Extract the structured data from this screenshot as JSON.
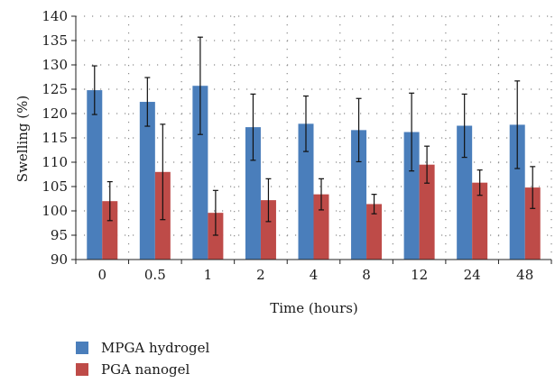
{
  "chart_data": {
    "type": "bar",
    "title": "",
    "xlabel": "Time (hours)",
    "ylabel": "Swelling (%)",
    "ylim": [
      90,
      140
    ],
    "yticks": [
      90,
      95,
      100,
      105,
      110,
      115,
      120,
      125,
      130,
      135,
      140
    ],
    "grid": "dotted",
    "legend_position": "bottom-left",
    "categories": [
      "0",
      "0.5",
      "1",
      "2",
      "4",
      "8",
      "12",
      "24",
      "48"
    ],
    "series": [
      {
        "name": "MPGA hydrogel",
        "color": "#4a7ebb",
        "values": [
          124.8,
          122.4,
          125.7,
          117.2,
          117.9,
          116.6,
          116.2,
          117.5,
          117.7
        ],
        "errors": [
          5.0,
          5.0,
          10.0,
          6.8,
          5.7,
          6.5,
          8.0,
          6.5,
          9.0
        ]
      },
      {
        "name": "PGA nanogel",
        "color": "#be4b48",
        "values": [
          102.0,
          108.0,
          99.6,
          102.2,
          103.4,
          101.4,
          109.5,
          105.8,
          104.8
        ],
        "errors": [
          4.0,
          9.8,
          4.6,
          4.4,
          3.2,
          2.0,
          3.8,
          2.6,
          4.3
        ]
      }
    ]
  }
}
